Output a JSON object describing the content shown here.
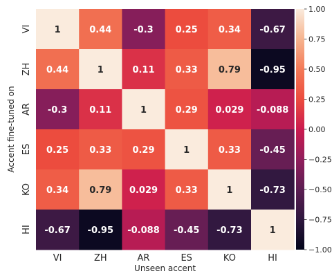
{
  "chart_data": {
    "type": "heatmap",
    "title": "",
    "xlabel": "Unseen accent",
    "ylabel": "Accent fine-tuned on",
    "x_categories": [
      "VI",
      "ZH",
      "AR",
      "ES",
      "KO",
      "HI"
    ],
    "y_categories": [
      "VI",
      "ZH",
      "AR",
      "ES",
      "KO",
      "HI"
    ],
    "values": [
      [
        1,
        0.44,
        -0.3,
        0.25,
        0.34,
        -0.67
      ],
      [
        0.44,
        1,
        0.11,
        0.33,
        0.79,
        -0.95
      ],
      [
        -0.3,
        0.11,
        1,
        0.29,
        0.029,
        -0.088
      ],
      [
        0.25,
        0.33,
        0.29,
        1,
        0.33,
        -0.45
      ],
      [
        0.34,
        0.79,
        0.029,
        0.33,
        1,
        -0.73
      ],
      [
        -0.67,
        -0.95,
        -0.088,
        -0.45,
        -0.73,
        1
      ]
    ],
    "value_labels": [
      [
        "1",
        "0.44",
        "-0.3",
        "0.25",
        "0.34",
        "-0.67"
      ],
      [
        "0.44",
        "1",
        "0.11",
        "0.33",
        "0.79",
        "-0.95"
      ],
      [
        "-0.3",
        "0.11",
        "1",
        "0.29",
        "0.029",
        "-0.088"
      ],
      [
        "0.25",
        "0.33",
        "0.29",
        "1",
        "0.33",
        "-0.45"
      ],
      [
        "0.34",
        "0.79",
        "0.029",
        "0.33",
        "1",
        "-0.73"
      ],
      [
        "-0.67",
        "-0.95",
        "-0.088",
        "-0.45",
        "-0.73",
        "1"
      ]
    ],
    "colorbar": {
      "range": [
        -1.0,
        1.0
      ],
      "ticks": [
        1.0,
        0.75,
        0.5,
        0.25,
        0.0,
        -0.25,
        -0.5,
        -0.75,
        -1.0
      ],
      "tick_labels": [
        "1.00",
        "0.75",
        "0.50",
        "0.25",
        "0.00",
        "−0.25",
        "−0.50",
        "−0.75",
        "−1.00"
      ]
    },
    "colormap": "rocket",
    "grid": false
  }
}
